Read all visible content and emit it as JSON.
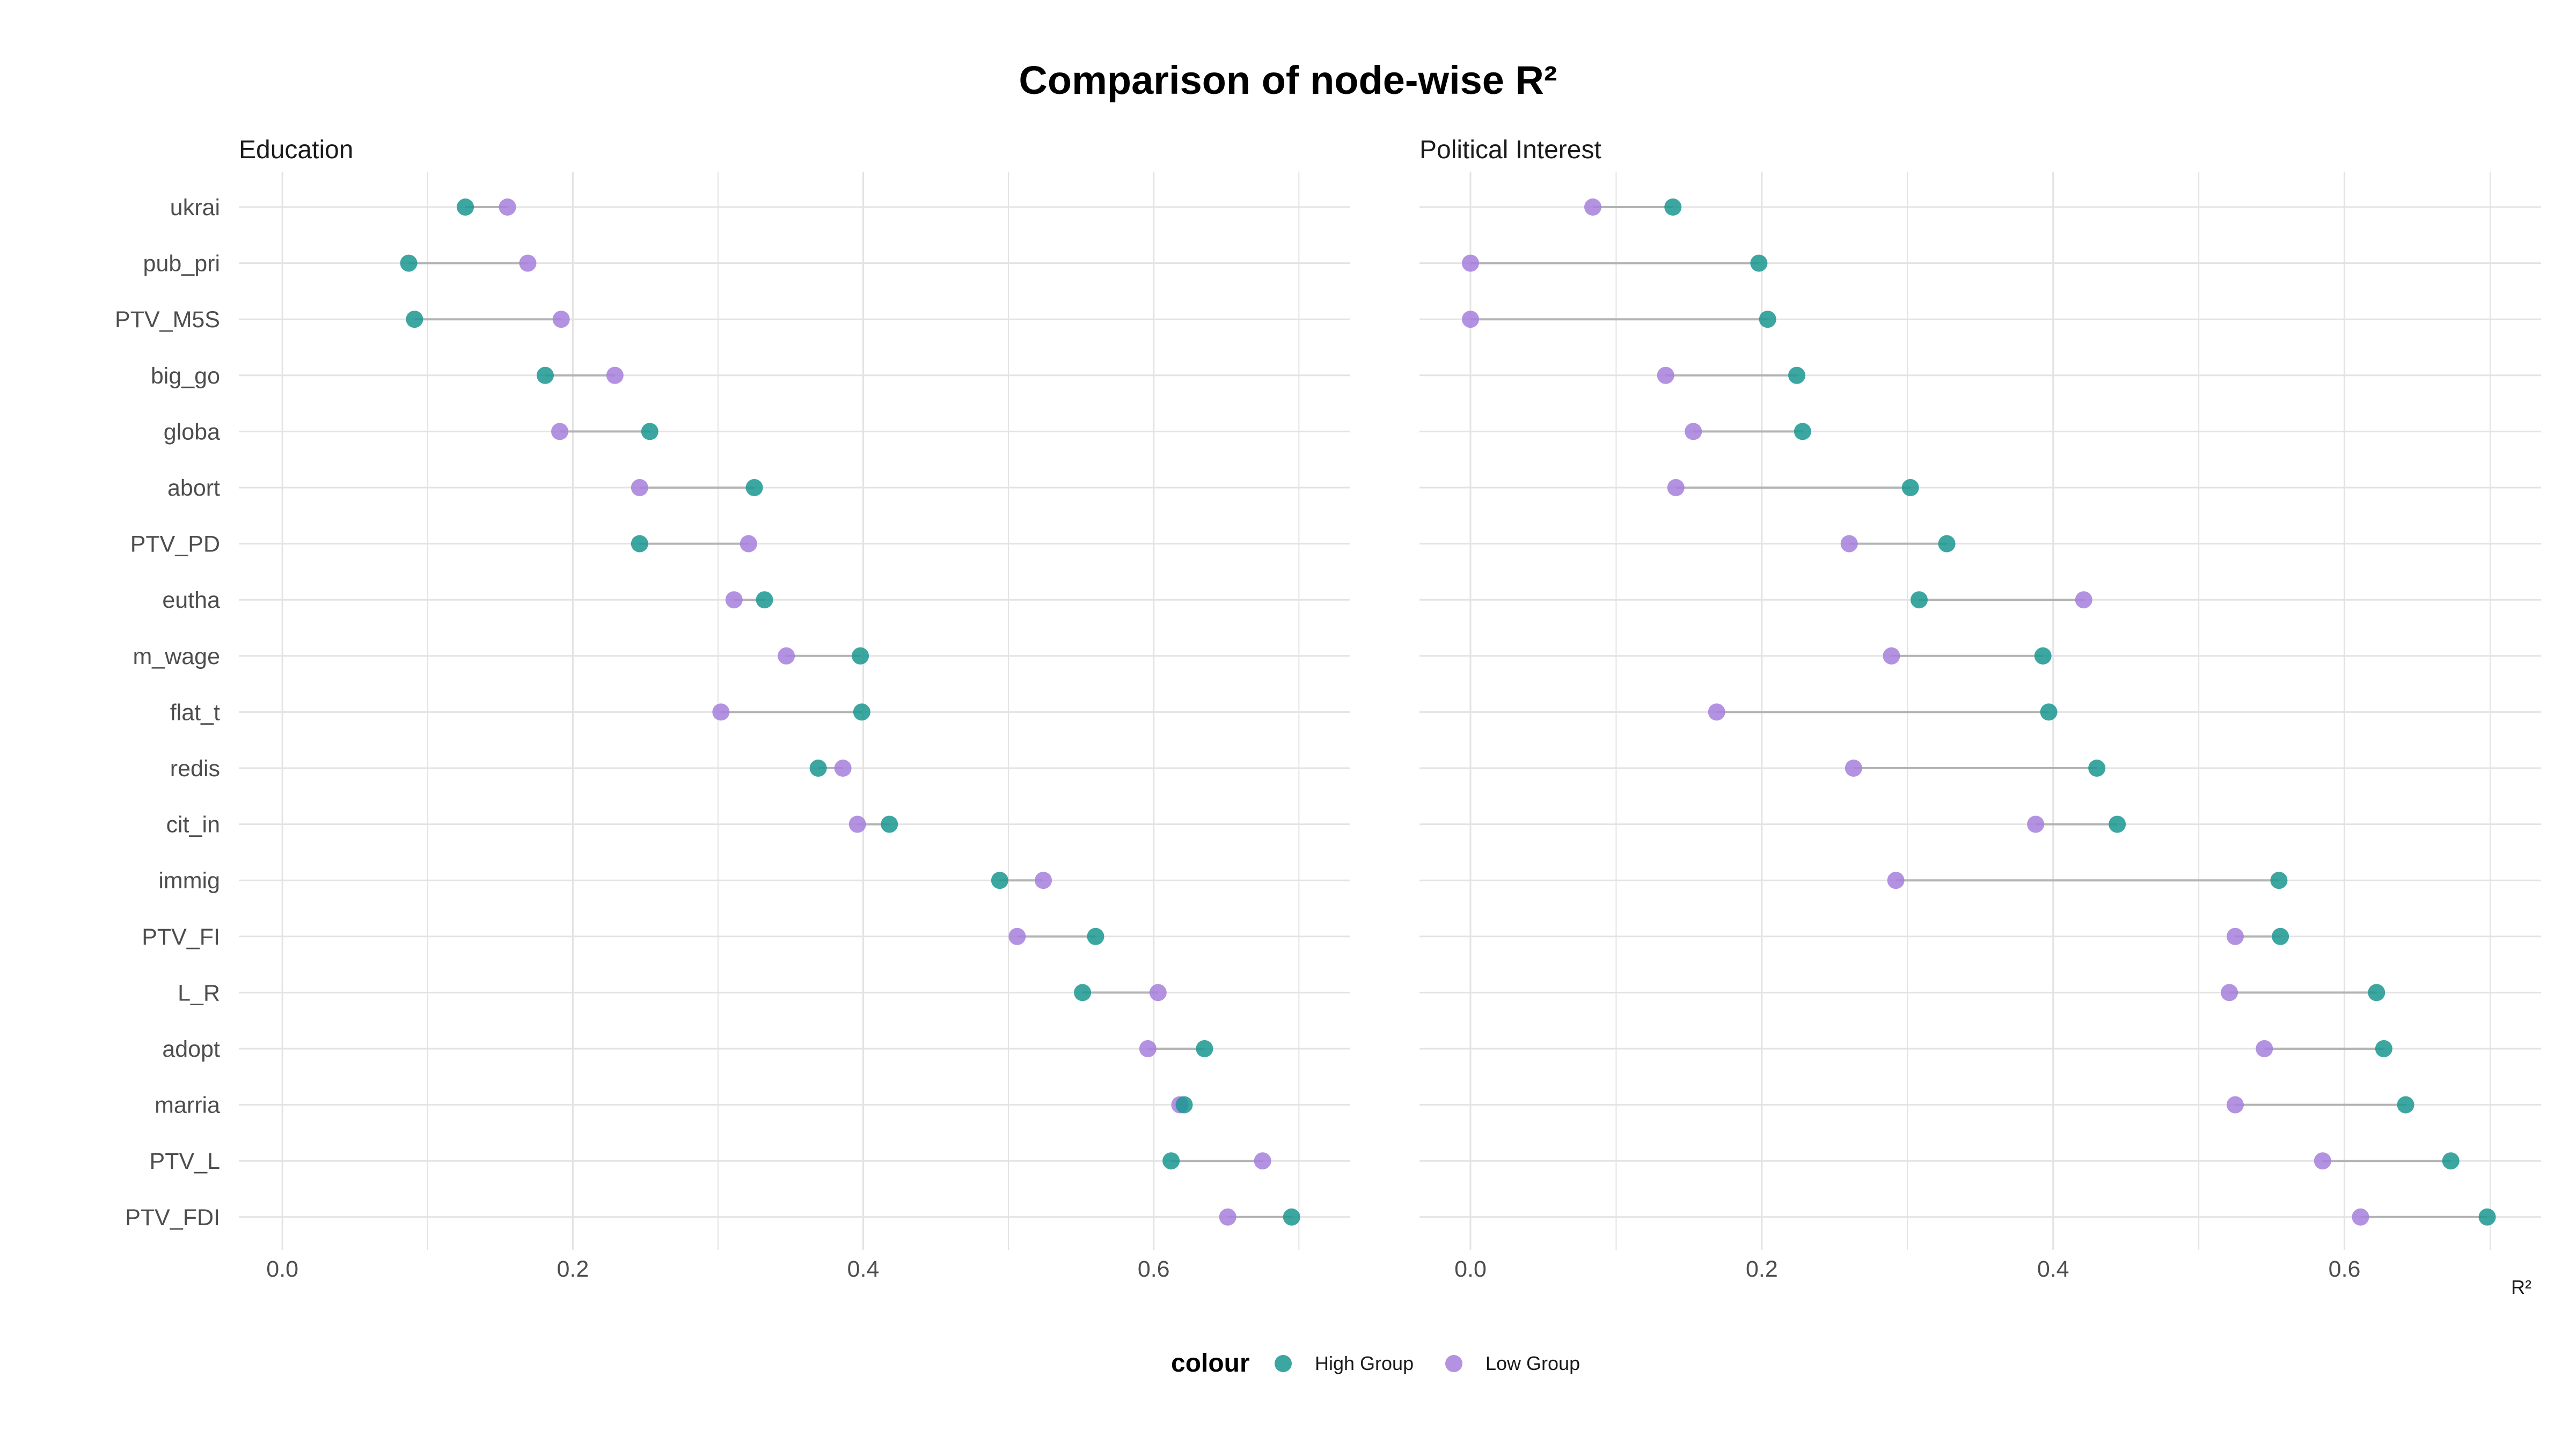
{
  "title": "Comparison of node-wise R²",
  "x_axis_title": "R²",
  "legend": {
    "title": "colour",
    "position": "bottom",
    "items": [
      {
        "label": "High Group",
        "color": "#1a9690"
      },
      {
        "label": "Low Group",
        "color": "#a57fdc"
      }
    ]
  },
  "colors": {
    "high": "#1a9690",
    "low": "#a57fdc",
    "segment": "#b3b3b3",
    "grid": "#e3e3e3"
  },
  "chart_data": [
    {
      "type": "dumbbell",
      "panel_title": "Education",
      "xlabel": "",
      "xlim": [
        -0.03,
        0.735
      ],
      "xticks": [
        0.0,
        0.2,
        0.4,
        0.6
      ],
      "tick_labels": [
        "0.0",
        "0.2",
        "0.4",
        "0.6"
      ],
      "grid": true,
      "categories": [
        "ukrai",
        "pub_pri",
        "PTV_M5S",
        "big_go",
        "globa",
        "abort",
        "PTV_PD",
        "eutha",
        "m_wage",
        "flat_t",
        "redis",
        "cit_in",
        "immig",
        "PTV_FI",
        "L_R",
        "adopt",
        "marria",
        "PTV_L",
        "PTV_FDI"
      ],
      "series": [
        {
          "name": "High Group",
          "values": [
            0.126,
            0.087,
            0.091,
            0.181,
            0.253,
            0.325,
            0.246,
            0.332,
            0.398,
            0.399,
            0.369,
            0.418,
            0.494,
            0.56,
            0.551,
            0.635,
            0.621,
            0.612,
            0.695
          ]
        },
        {
          "name": "Low Group",
          "values": [
            0.155,
            0.169,
            0.192,
            0.229,
            0.191,
            0.246,
            0.321,
            0.311,
            0.347,
            0.302,
            0.386,
            0.396,
            0.524,
            0.506,
            0.603,
            0.596,
            0.618,
            0.675,
            0.651
          ]
        }
      ]
    },
    {
      "type": "dumbbell",
      "panel_title": "Political Interest",
      "xlabel": "R²",
      "xlim": [
        -0.035,
        0.735
      ],
      "xticks": [
        0.0,
        0.2,
        0.4,
        0.6
      ],
      "tick_labels": [
        "0.0",
        "0.2",
        "0.4",
        "0.6"
      ],
      "grid": true,
      "categories": [
        "ukrai",
        "pub_pri",
        "PTV_M5S",
        "big_go",
        "globa",
        "abort",
        "PTV_PD",
        "eutha",
        "m_wage",
        "flat_t",
        "redis",
        "cit_in",
        "immig",
        "PTV_FI",
        "L_R",
        "adopt",
        "marria",
        "PTV_L",
        "PTV_FDI"
      ],
      "series": [
        {
          "name": "High Group",
          "values": [
            0.139,
            0.198,
            0.204,
            0.224,
            0.228,
            0.302,
            0.327,
            0.308,
            0.393,
            0.397,
            0.43,
            0.444,
            0.555,
            0.556,
            0.622,
            0.627,
            0.642,
            0.673,
            0.698
          ]
        },
        {
          "name": "Low Group",
          "values": [
            0.084,
            0.0,
            0.0,
            0.134,
            0.153,
            0.141,
            0.26,
            0.421,
            0.289,
            0.169,
            0.263,
            0.388,
            0.292,
            0.525,
            0.521,
            0.545,
            0.525,
            0.585,
            0.611
          ]
        }
      ]
    }
  ]
}
